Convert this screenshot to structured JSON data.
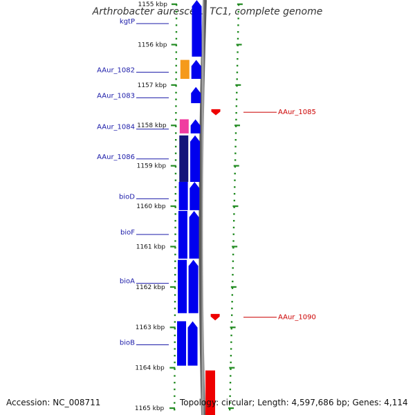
{
  "title": "Arthrobacter aurescens TC1, complete genome",
  "footer": {
    "accession": "Accession: NC_008711",
    "summary": "Topology: circular; Length: 4,597,686 bp; Genes: 4,114"
  },
  "colors": {
    "forward": "#0000ee",
    "reverse": "#ee0000",
    "dark": "#14147a",
    "orange": "#f59a1b",
    "pink": "#f03ca0",
    "label_blue": "#1a1aa8",
    "label_red": "#cc0000",
    "ticks": "#228b22",
    "backbone": "#8c8c8c"
  },
  "scale": {
    "unit": "kbp",
    "labels": [
      "1155 kbp",
      "1156 kbp",
      "1157 kbp",
      "1158 kbp",
      "1159 kbp",
      "1160 kbp",
      "1161 kbp",
      "1162 kbp",
      "1163 kbp",
      "1164 kbp",
      "1165 kbp"
    ]
  },
  "genes": [
    {
      "name": "kgtP",
      "strand": "+",
      "start_kbp": 1154.9,
      "end_kbp": 1156.3
    },
    {
      "name": "AAur_1082",
      "strand": "+",
      "start_kbp": 1156.38,
      "end_kbp": 1156.85
    },
    {
      "name": "AAur_1083",
      "strand": "+",
      "start_kbp": 1157.05,
      "end_kbp": 1157.45
    },
    {
      "name": "AAur_1084",
      "strand": "+",
      "start_kbp": 1157.85,
      "end_kbp": 1158.2
    },
    {
      "name": "AAur_1085",
      "strand": "-",
      "start_kbp": 1157.6,
      "end_kbp": 1157.75
    },
    {
      "name": "AAur_1086",
      "strand": "+",
      "start_kbp": 1158.25,
      "end_kbp": 1159.4
    },
    {
      "name": "bioD",
      "strand": "+",
      "start_kbp": 1159.4,
      "end_kbp": 1160.1
    },
    {
      "name": "bioF",
      "strand": "+",
      "start_kbp": 1160.12,
      "end_kbp": 1161.3
    },
    {
      "name": "bioA",
      "strand": "+",
      "start_kbp": 1161.33,
      "end_kbp": 1162.65
    },
    {
      "name": "AAur_1090",
      "strand": "-",
      "start_kbp": 1162.67,
      "end_kbp": 1162.83
    },
    {
      "name": "bioB",
      "strand": "+",
      "start_kbp": 1162.85,
      "end_kbp": 1163.95
    },
    {
      "name": "",
      "strand": "-",
      "start_kbp": 1164.0,
      "end_kbp": 1165.2
    }
  ]
}
